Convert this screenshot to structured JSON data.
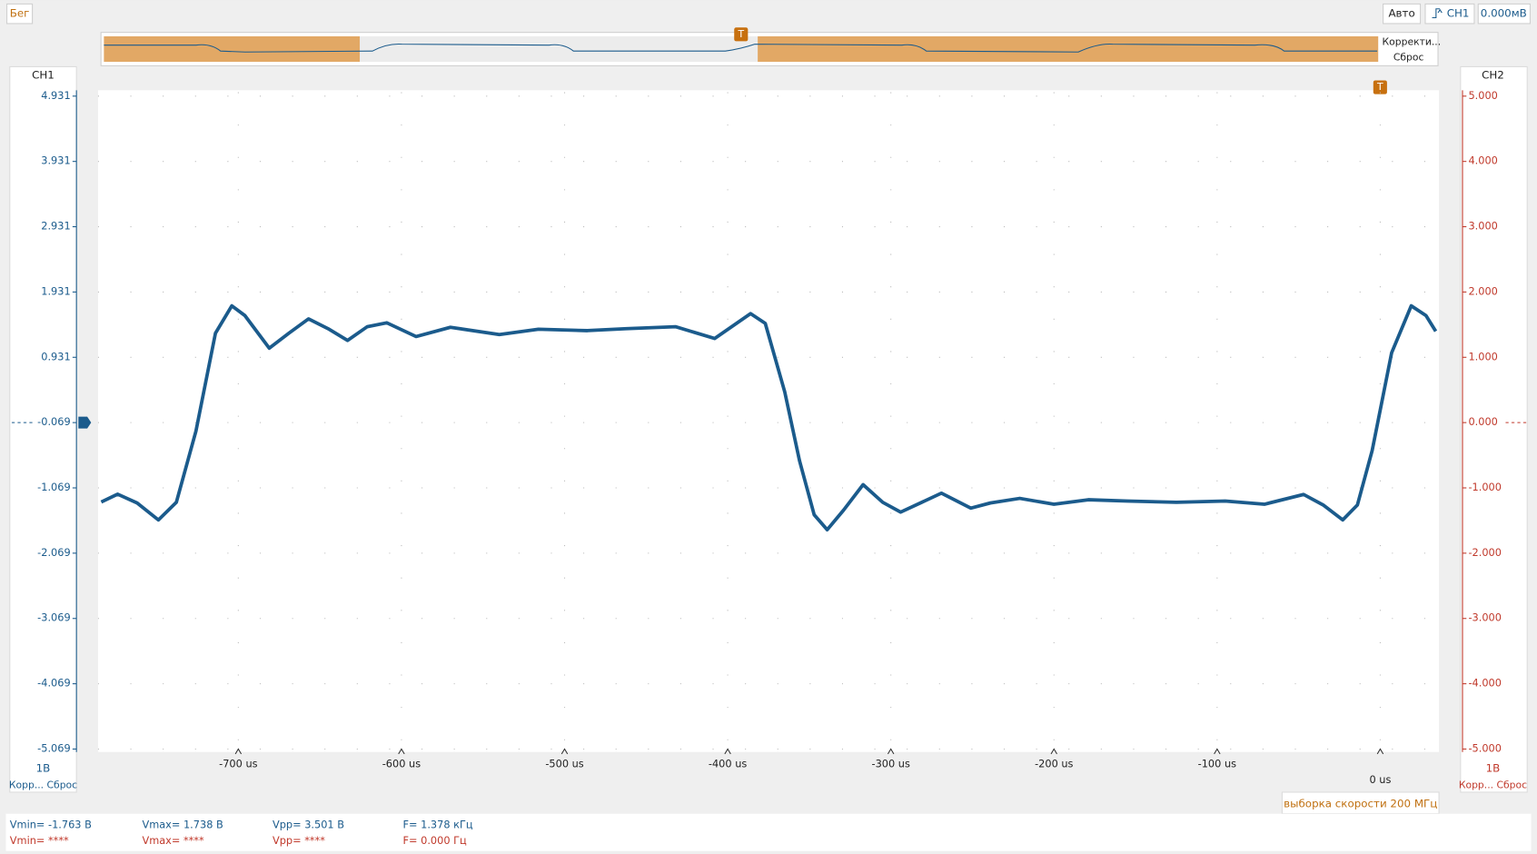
{
  "toolbar": {
    "run": "Бег",
    "mode": "Авто",
    "channel": "CH1",
    "level": "0.000мВ"
  },
  "overview": {
    "correct": "Корректи...",
    "reset": "Сброс"
  },
  "left_panel": {
    "title": "CH1",
    "scale": "1В",
    "buttons": "Корр... Сброс"
  },
  "right_panel": {
    "title": "CH2",
    "scale": "1В",
    "buttons": "Корр... Сброс"
  },
  "sample_rate": "выборка скорости 200 МГц",
  "measurements": {
    "ch1": [
      "Vmin= -1.763 В",
      "Vmax= 1.738 В",
      "Vpp= 3.501 В",
      "F= 1.378 кГц"
    ],
    "ch2": [
      "Vmin= ****",
      "Vmax= ****",
      "Vpp= ****",
      "F= 0.000 Гц"
    ]
  },
  "chart_data": {
    "type": "line",
    "color": "#1b5b8c",
    "grid": true,
    "x": [
      -784,
      -774,
      -762,
      -749,
      -738,
      -726,
      -714,
      -704,
      -696,
      -681,
      -669,
      -657,
      -645,
      -633,
      -621,
      -609,
      -591,
      -570,
      -540,
      -516,
      -486,
      -462,
      -432,
      -408,
      -386,
      -377,
      -365,
      -356,
      -347,
      -339,
      -329,
      -317,
      -305,
      -294,
      -281,
      -269,
      -251,
      -239,
      -221,
      -200,
      -179,
      -155,
      -125,
      -95,
      -71,
      -47,
      -35,
      -23,
      -14,
      -5,
      7,
      19,
      28,
      34
    ],
    "values": [
      -1.285,
      -1.165,
      -1.3,
      -1.56,
      -1.29,
      -0.2,
      1.3,
      1.72,
      1.57,
      1.07,
      1.3,
      1.52,
      1.37,
      1.19,
      1.4,
      1.46,
      1.25,
      1.39,
      1.28,
      1.36,
      1.34,
      1.37,
      1.4,
      1.22,
      1.6,
      1.45,
      0.4,
      -0.65,
      -1.48,
      -1.71,
      -1.41,
      -1.02,
      -1.29,
      -1.44,
      -1.29,
      -1.15,
      -1.38,
      -1.3,
      -1.23,
      -1.32,
      -1.25,
      -1.27,
      -1.29,
      -1.27,
      -1.32,
      -1.17,
      -1.33,
      -1.56,
      -1.33,
      -0.5,
      1.0,
      1.72,
      1.57,
      1.33
    ],
    "xlim": [
      -786,
      36
    ],
    "xticks": [
      {
        "value": -700,
        "label": "-700 us"
      },
      {
        "value": -600,
        "label": "-600 us"
      },
      {
        "value": -500,
        "label": "-500 us"
      },
      {
        "value": -400,
        "label": "-400 us"
      },
      {
        "value": -300,
        "label": "-300 us"
      },
      {
        "value": -200,
        "label": "-200 us"
      },
      {
        "value": -100,
        "label": "-100 us"
      },
      {
        "value": 0,
        "label": "0 us"
      }
    ],
    "ylim": [
      -5.069,
      4.931
    ],
    "yticks": [
      -5.069,
      -4.069,
      -3.069,
      -2.069,
      -1.069,
      -0.069,
      0.931,
      1.931,
      2.931,
      3.931,
      4.931
    ],
    "y2lim": [
      -5,
      5
    ],
    "y2ticks": [
      {
        "value": -5,
        "label": "-5.000"
      },
      {
        "value": -4,
        "label": "-4.000"
      },
      {
        "value": -3,
        "label": "-3.000"
      },
      {
        "value": -2,
        "label": "-2.000"
      },
      {
        "value": -1,
        "label": "-1.000"
      },
      {
        "value": 0,
        "label": "0.000"
      },
      {
        "value": 1,
        "label": "1.000"
      },
      {
        "value": 2,
        "label": "2.000"
      },
      {
        "value": 3,
        "label": "3.000"
      },
      {
        "value": 4,
        "label": "4.000"
      },
      {
        "value": 5,
        "label": "5.000"
      }
    ]
  }
}
